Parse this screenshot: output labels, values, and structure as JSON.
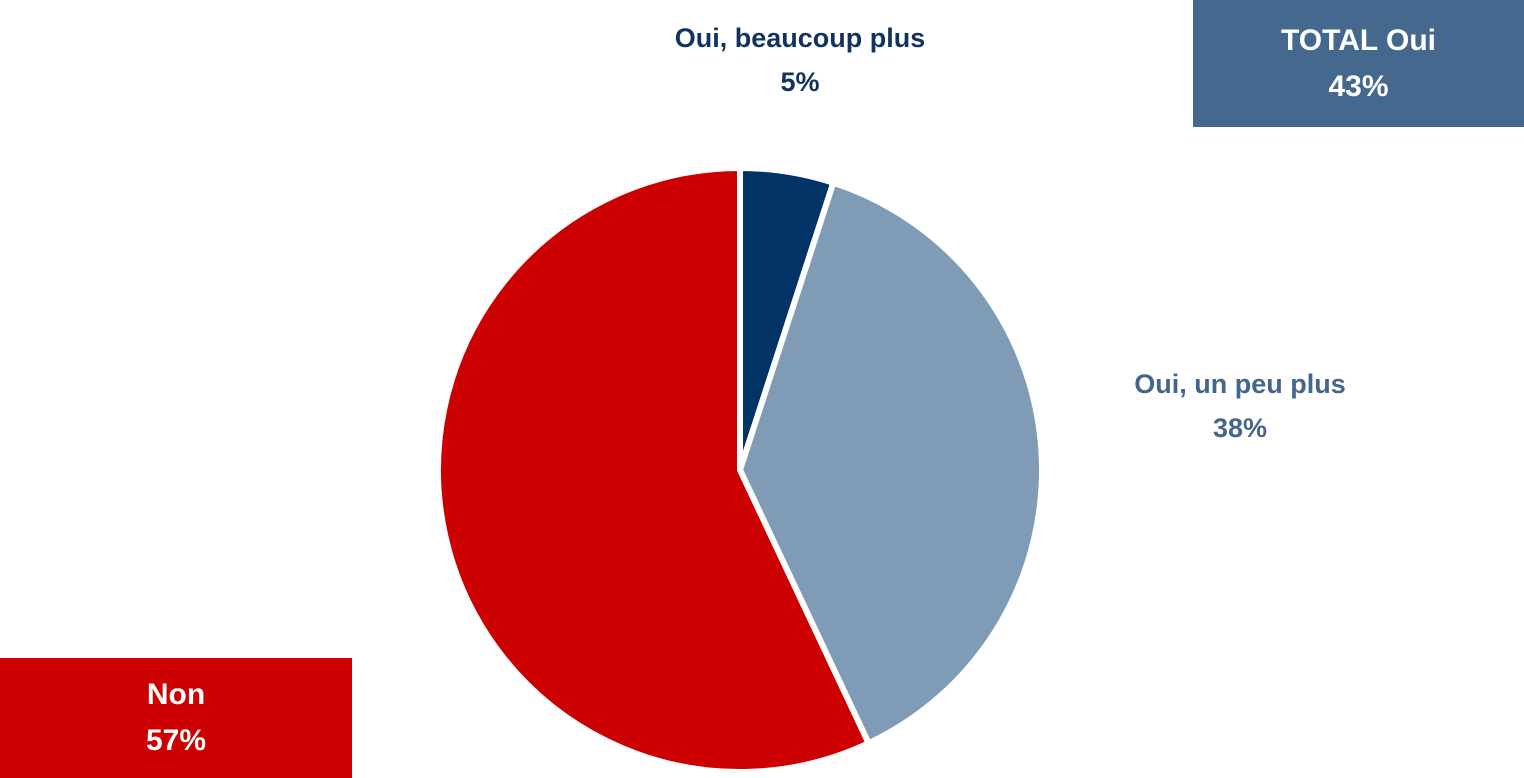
{
  "chart_data": {
    "type": "pie",
    "slices": [
      {
        "label": "Oui, beaucoup plus",
        "value": 5,
        "display": "5%",
        "color": "#023366"
      },
      {
        "label": "Oui, un peu plus",
        "value": 38,
        "display": "38%",
        "color": "#7f9bb5"
      },
      {
        "label": "Non",
        "value": 57,
        "display": "57%",
        "color": "#cc0000"
      }
    ]
  },
  "total_box": {
    "title": "TOTAL Oui",
    "value": "43%",
    "color": "#44688e"
  },
  "non_box": {
    "title": "Non",
    "value": "57%",
    "color": "#cc0000"
  }
}
